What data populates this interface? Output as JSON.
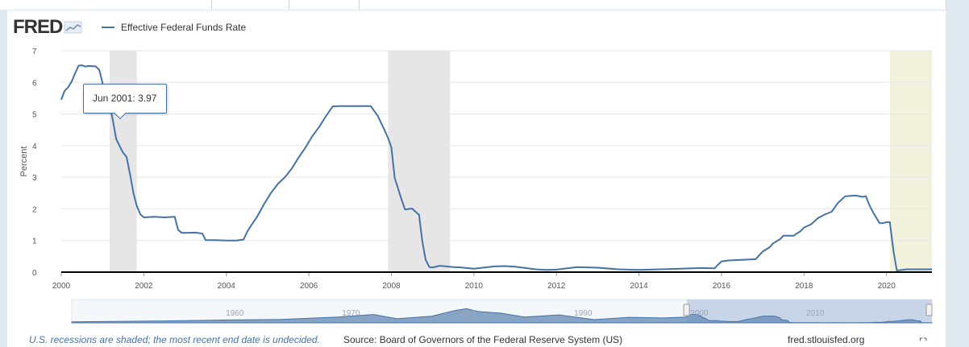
{
  "logo": {
    "text": "FRED"
  },
  "legend": {
    "label": "Effective Federal Funds Rate"
  },
  "tooltip": {
    "label": "Jun 2001:",
    "value": "3.97"
  },
  "footer": {
    "recession_note": "U.S. recessions are shaded; the most recent end date is undecided.",
    "source": "Source: Board of Governors of the Federal Reserve System (US)",
    "site": "fred.stlouisfed.org"
  },
  "navigator": {
    "labels": [
      "1960",
      "1970",
      "1980",
      "1990",
      "2000",
      "2010"
    ]
  },
  "colors": {
    "line": "#4572a7",
    "recession": "#e6e6e6",
    "undecided": "#f2f2dc"
  },
  "chart_data": {
    "type": "line",
    "title": "",
    "ylabel": "Percent",
    "xlabel": "",
    "xlim": [
      2000.0,
      2021.1
    ],
    "ylim": [
      0,
      7
    ],
    "yticks": [
      0,
      1,
      2,
      3,
      4,
      5,
      6,
      7
    ],
    "xticks": [
      2000,
      2002,
      2004,
      2006,
      2008,
      2010,
      2012,
      2014,
      2016,
      2018,
      2020
    ],
    "recessions": [
      [
        2001.17,
        2001.83
      ],
      [
        2007.92,
        2009.42
      ]
    ],
    "undecided_recession": [
      2020.08,
      2021.1
    ],
    "series": [
      {
        "name": "Effective Federal Funds Rate",
        "x": [
          2000.0,
          2000.08,
          2000.17,
          2000.25,
          2000.33,
          2000.42,
          2000.5,
          2000.58,
          2000.67,
          2000.75,
          2000.83,
          2000.92,
          2001.0,
          2001.08,
          2001.17,
          2001.25,
          2001.33,
          2001.42,
          2001.5,
          2001.58,
          2001.67,
          2001.75,
          2001.83,
          2001.92,
          2002.0,
          2002.25,
          2002.5,
          2002.75,
          2002.83,
          2002.92,
          2003.0,
          2003.25,
          2003.42,
          2003.5,
          2003.75,
          2004.0,
          2004.25,
          2004.42,
          2004.5,
          2004.58,
          2004.75,
          2004.92,
          2005.08,
          2005.25,
          2005.42,
          2005.58,
          2005.75,
          2005.92,
          2006.08,
          2006.25,
          2006.42,
          2006.58,
          2006.75,
          2007.0,
          2007.25,
          2007.5,
          2007.67,
          2007.83,
          2007.92,
          2008.0,
          2008.08,
          2008.17,
          2008.25,
          2008.33,
          2008.5,
          2008.67,
          2008.75,
          2008.83,
          2008.92,
          2009.0,
          2009.17,
          2009.33,
          2009.5,
          2009.67,
          2010.0,
          2010.5,
          2010.75,
          2011.0,
          2011.5,
          2011.75,
          2012.0,
          2012.5,
          2013.0,
          2013.5,
          2014.0,
          2014.5,
          2015.0,
          2015.5,
          2015.83,
          2015.92,
          2016.0,
          2016.17,
          2016.5,
          2016.83,
          2016.92,
          2017.0,
          2017.17,
          2017.25,
          2017.42,
          2017.5,
          2017.75,
          2017.92,
          2018.0,
          2018.17,
          2018.33,
          2018.5,
          2018.67,
          2018.83,
          2019.0,
          2019.25,
          2019.42,
          2019.5,
          2019.58,
          2019.67,
          2019.83,
          2019.92,
          2020.0,
          2020.08,
          2020.17,
          2020.25,
          2020.5,
          2021.0,
          2021.1
        ],
        "values": [
          5.45,
          5.73,
          5.85,
          6.02,
          6.27,
          6.53,
          6.54,
          6.5,
          6.52,
          6.51,
          6.51,
          6.4,
          5.98,
          5.49,
          5.31,
          4.8,
          4.21,
          3.97,
          3.77,
          3.65,
          3.07,
          2.49,
          2.09,
          1.82,
          1.73,
          1.75,
          1.73,
          1.75,
          1.34,
          1.24,
          1.24,
          1.25,
          1.22,
          1.01,
          1.01,
          1.0,
          1.0,
          1.03,
          1.26,
          1.43,
          1.76,
          2.16,
          2.5,
          2.79,
          3.0,
          3.26,
          3.62,
          3.94,
          4.29,
          4.59,
          4.94,
          5.24,
          5.25,
          5.25,
          5.25,
          5.25,
          4.94,
          4.5,
          4.24,
          3.94,
          2.98,
          2.61,
          2.28,
          1.98,
          2.01,
          1.81,
          0.97,
          0.39,
          0.16,
          0.15,
          0.2,
          0.18,
          0.16,
          0.15,
          0.11,
          0.18,
          0.19,
          0.17,
          0.09,
          0.07,
          0.08,
          0.16,
          0.14,
          0.09,
          0.07,
          0.09,
          0.11,
          0.13,
          0.12,
          0.24,
          0.34,
          0.37,
          0.39,
          0.41,
          0.54,
          0.65,
          0.79,
          0.91,
          1.04,
          1.15,
          1.15,
          1.3,
          1.41,
          1.51,
          1.7,
          1.82,
          1.91,
          2.2,
          2.4,
          2.42,
          2.38,
          2.4,
          2.13,
          1.9,
          1.55,
          1.55,
          1.58,
          1.58,
          0.65,
          0.05,
          0.09,
          0.09,
          0.09
        ]
      }
    ]
  }
}
